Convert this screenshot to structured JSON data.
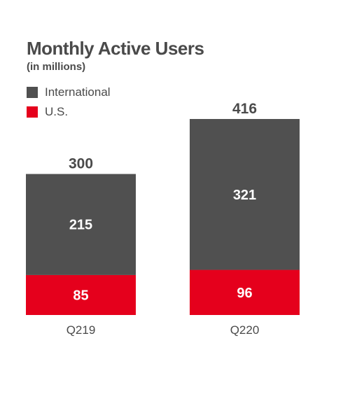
{
  "chart_data": {
    "type": "bar",
    "stacked": true,
    "title": "Monthly Active Users",
    "subtitle": "(in millions)",
    "categories": [
      "Q219",
      "Q220"
    ],
    "series": [
      {
        "name": "U.S.",
        "color": "#e5001c",
        "values": [
          85,
          96
        ]
      },
      {
        "name": "International",
        "color": "#505050",
        "values": [
          215,
          321
        ]
      }
    ],
    "totals": [
      300,
      416
    ],
    "grid": false,
    "legend_position": "top-left"
  }
}
